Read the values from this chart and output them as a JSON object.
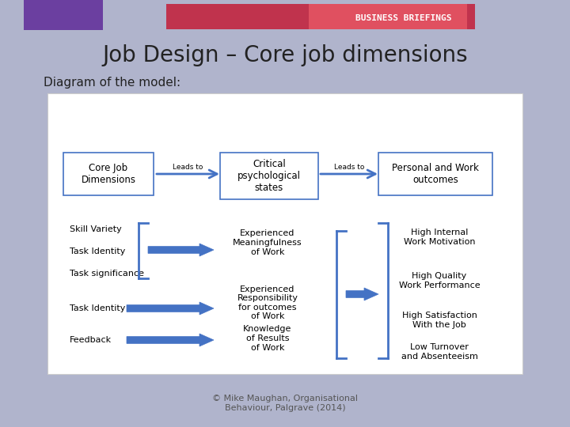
{
  "bg_color": "#b0b4cc",
  "slide_bg": "#b0b4cc",
  "white_bg": "#ffffff",
  "title": "Job Design – Core job dimensions",
  "subtitle": "Diagram of the model:",
  "copyright": "© Mike Maughan, Organisational\nBehaviour, Palgrave (2014)",
  "arrow_color": "#4472c4",
  "box_border_color": "#4472c4",
  "header_box_fill": "#4472c4",
  "header_box_text": "#ffffff",
  "header_bar_purple": "#6b3fa0",
  "header_bar_red": "#c0334d",
  "header_bar_redlight": "#e05060",
  "business_briefings_text": "#ffffff",
  "title_color": "#222222",
  "subtitle_color": "#222222",
  "left_items": [
    "Skill Variety",
    "Task Identity",
    "Task significance",
    "Task Identity",
    "Feedback"
  ],
  "middle_items": [
    "Experienced\nMeaningfulness\nof Work",
    "Experienced\nResponsibility\nfor outcomes\nof Work",
    "Knowledge\nof Results\nof Work"
  ],
  "right_items": [
    "High Internal\nWork Motivation",
    "High Quality\nWork Performance",
    "High Satisfaction\nWith the Job",
    "Low Turnover\nand Absenteeism"
  ],
  "top_boxes": [
    "Core Job\nDimensions",
    "Critical\npsychological\nstates",
    "Personal and Work\noutcomes"
  ],
  "leads_to_labels": [
    "Leads to",
    "Leads to"
  ]
}
